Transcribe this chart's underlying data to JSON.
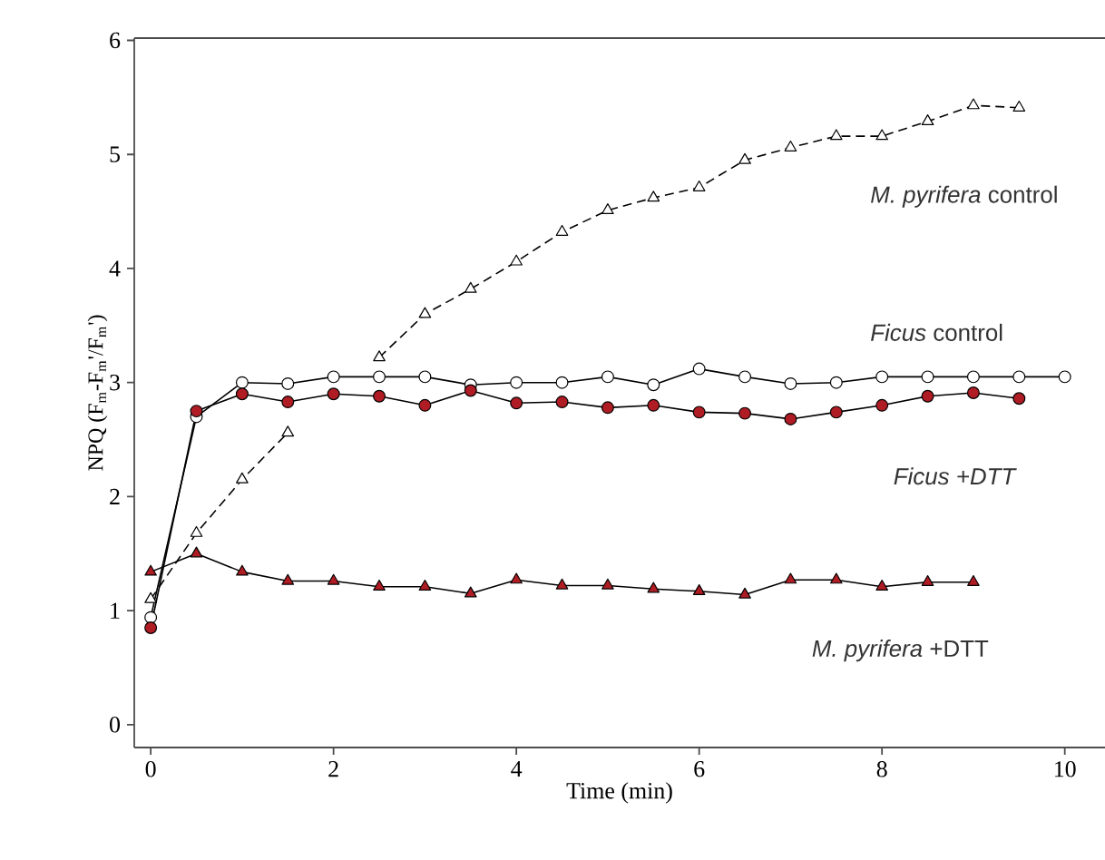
{
  "chart_data": {
    "type": "line",
    "xlabel": "Time (min)",
    "ylabel": "NPQ (F$_{m}$-F$_{m}$'/F$_{m}$')",
    "xlim": [
      -0.18,
      10.44
    ],
    "ylim": [
      -0.2,
      6.02
    ],
    "xticks": [
      0,
      2,
      4,
      6,
      8,
      10
    ],
    "yticks": [
      0,
      1,
      2,
      3,
      4,
      5,
      6
    ],
    "grid": false,
    "legend": false,
    "series": [
      {
        "name": "*M. pyrifera* control",
        "color": "#ffffff",
        "marker": "triangle",
        "line_style": "dashed",
        "x": [
          0,
          0.5,
          1,
          1.5,
          2,
          2.5,
          3,
          3.5,
          4,
          4.5,
          5,
          5.5,
          6,
          6.5,
          7,
          7.5,
          8,
          8.5,
          9,
          9.5
        ],
        "values": [
          1.1,
          1.68,
          2.15,
          2.56,
          null,
          3.22,
          3.6,
          3.82,
          4.06,
          4.32,
          4.51,
          4.62,
          4.71,
          4.95,
          5.06,
          5.16,
          5.16,
          5.29,
          5.43,
          5.41
        ]
      },
      {
        "name": "*Ficus* control",
        "color": "#ffffff",
        "marker": "circle",
        "line_style": "solid",
        "x": [
          0,
          0.5,
          1,
          1.5,
          2,
          2.5,
          3,
          3.5,
          4,
          4.5,
          5,
          5.5,
          6,
          6.5,
          7,
          7.5,
          8,
          8.5,
          9,
          9.5,
          10
        ],
        "values": [
          0.94,
          2.7,
          3.0,
          2.99,
          3.05,
          3.05,
          3.05,
          2.98,
          3.0,
          3.0,
          3.05,
          2.98,
          3.12,
          3.05,
          2.99,
          3.0,
          3.05,
          3.05,
          3.05,
          3.05,
          3.05
        ]
      },
      {
        "name": "*Ficus +DTT*",
        "color": "#b01c24",
        "marker": "circle",
        "line_style": "solid",
        "x": [
          0,
          0.5,
          1,
          1.5,
          2,
          2.5,
          3,
          3.5,
          4,
          4.5,
          5,
          5.5,
          6,
          6.5,
          7,
          7.5,
          8,
          8.5,
          9,
          9.5
        ],
        "values": [
          0.85,
          2.75,
          2.9,
          2.83,
          2.9,
          2.88,
          2.8,
          2.93,
          2.82,
          2.83,
          2.78,
          2.8,
          2.74,
          2.73,
          2.68,
          2.74,
          2.8,
          2.88,
          2.91,
          2.86
        ]
      },
      {
        "name": "*M. pyrifera* +DTT",
        "color": "#b01c24",
        "marker": "triangle",
        "line_style": "solid",
        "x": [
          0,
          0.5,
          1,
          1.5,
          2,
          2.5,
          3,
          3.5,
          4,
          4.5,
          5,
          5.5,
          6,
          6.5,
          7,
          7.5,
          8,
          8.5,
          9
        ],
        "values": [
          1.34,
          1.5,
          1.34,
          1.26,
          1.26,
          1.21,
          1.21,
          1.15,
          1.27,
          1.22,
          1.22,
          1.19,
          1.17,
          1.14,
          1.27,
          1.27,
          1.21,
          1.25,
          1.25
        ]
      }
    ]
  }
}
